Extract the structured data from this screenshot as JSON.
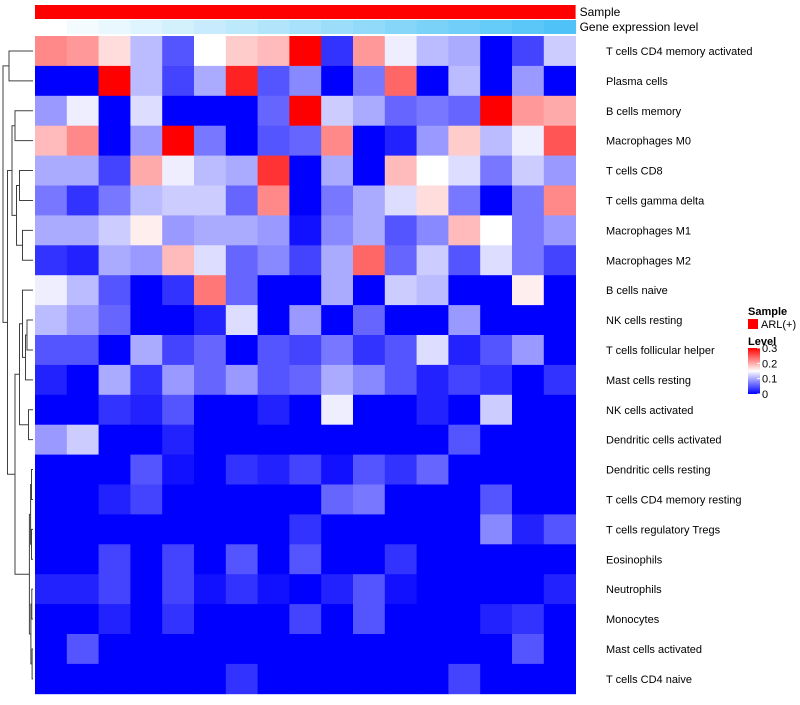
{
  "colors": {
    "low": "#0000ff",
    "mid": "#ffffff",
    "high": "#ff0000",
    "sample_bar": "#ff0000",
    "expr_low": "#ffffff",
    "expr_high": "#4fc3f7",
    "dendro": "#404040"
  },
  "chart_data": {
    "type": "heatmap",
    "title": "",
    "annotations": [
      {
        "label": "Sample",
        "kind": "categorical",
        "value": "ARL(+)"
      },
      {
        "label": "Gene expression level",
        "kind": "gradient",
        "range": [
          0,
          1
        ]
      }
    ],
    "rows": [
      "T cells CD4 memory activated",
      "Plasma cells",
      "B cells memory",
      "Macrophages M0",
      "T cells CD8",
      "T cells gamma delta",
      "Macrophages M1",
      "Macrophages M2",
      "B cells naive",
      "NK cells resting",
      "T cells follicular helper",
      "Mast cells resting",
      "NK cells activated",
      "Dendritic cells activated",
      "Dendritic cells resting",
      "T cells CD4 memory resting",
      "T cells regulatory  Tregs",
      "Eosinophils",
      "Neutrophils",
      "Monocytes",
      "Mast cells activated",
      "T cells CD4 naive"
    ],
    "columns": 17,
    "values": [
      [
        0.22,
        0.21,
        0.17,
        0.11,
        0.05,
        0.15,
        0.18,
        0.19,
        0.3,
        0.03,
        0.21,
        0.14,
        0.11,
        0.1,
        0.0,
        0.04,
        0.12
      ],
      [
        0.0,
        0.0,
        0.3,
        0.11,
        0.04,
        0.1,
        0.28,
        0.05,
        0.08,
        0.0,
        0.07,
        0.24,
        0.0,
        0.11,
        0.0,
        0.09,
        0.0
      ],
      [
        0.09,
        0.14,
        0.0,
        0.13,
        0.0,
        0.0,
        0.0,
        0.06,
        0.3,
        0.12,
        0.1,
        0.06,
        0.07,
        0.06,
        0.3,
        0.21,
        0.2
      ],
      [
        0.19,
        0.22,
        0.0,
        0.09,
        0.3,
        0.07,
        0.0,
        0.05,
        0.06,
        0.22,
        0.0,
        0.02,
        0.09,
        0.18,
        0.11,
        0.14,
        0.25
      ],
      [
        0.1,
        0.1,
        0.04,
        0.2,
        0.14,
        0.11,
        0.1,
        0.27,
        0.0,
        0.1,
        0.0,
        0.19,
        0.15,
        0.13,
        0.07,
        0.12,
        0.09
      ],
      [
        0.07,
        0.03,
        0.07,
        0.11,
        0.12,
        0.12,
        0.06,
        0.22,
        0.0,
        0.07,
        0.1,
        0.13,
        0.17,
        0.07,
        0.0,
        0.07,
        0.22
      ],
      [
        0.1,
        0.1,
        0.12,
        0.16,
        0.09,
        0.1,
        0.1,
        0.09,
        0.01,
        0.08,
        0.1,
        0.05,
        0.08,
        0.19,
        0.15,
        0.07,
        0.09
      ],
      [
        0.03,
        0.02,
        0.1,
        0.09,
        0.19,
        0.13,
        0.06,
        0.08,
        0.04,
        0.1,
        0.24,
        0.06,
        0.12,
        0.05,
        0.13,
        0.07,
        0.04
      ],
      [
        0.14,
        0.11,
        0.05,
        0.0,
        0.03,
        0.23,
        0.06,
        0.0,
        0.0,
        0.1,
        0.0,
        0.12,
        0.11,
        0.0,
        0.0,
        0.16,
        0.0
      ],
      [
        0.11,
        0.09,
        0.06,
        0.0,
        0.0,
        0.02,
        0.13,
        0.0,
        0.09,
        0.0,
        0.06,
        0.0,
        0.0,
        0.09,
        0.0,
        0.0,
        0.0
      ],
      [
        0.05,
        0.05,
        0.0,
        0.1,
        0.04,
        0.06,
        0.0,
        0.05,
        0.04,
        0.07,
        0.03,
        0.05,
        0.13,
        0.02,
        0.05,
        0.09,
        0.0
      ],
      [
        0.02,
        0.0,
        0.1,
        0.03,
        0.09,
        0.06,
        0.09,
        0.05,
        0.06,
        0.1,
        0.08,
        0.05,
        0.02,
        0.04,
        0.03,
        0.0,
        0.03
      ],
      [
        0.0,
        0.0,
        0.03,
        0.02,
        0.05,
        0.0,
        0.0,
        0.02,
        0.0,
        0.14,
        0.0,
        0.0,
        0.02,
        0.0,
        0.12,
        0.0,
        0.0
      ],
      [
        0.09,
        0.12,
        0.0,
        0.0,
        0.02,
        0.0,
        0.0,
        0.0,
        0.0,
        0.0,
        0.0,
        0.0,
        0.0,
        0.05,
        0.0,
        0.0,
        0.0
      ],
      [
        0.0,
        0.0,
        0.0,
        0.05,
        0.01,
        0.0,
        0.03,
        0.02,
        0.04,
        0.01,
        0.05,
        0.03,
        0.06,
        0.0,
        0.0,
        0.0,
        0.0
      ],
      [
        0.0,
        0.0,
        0.02,
        0.04,
        0.0,
        0.0,
        0.0,
        0.0,
        0.0,
        0.06,
        0.07,
        0.0,
        0.0,
        0.0,
        0.05,
        0.0,
        0.0
      ],
      [
        0.0,
        0.0,
        0.0,
        0.0,
        0.0,
        0.0,
        0.0,
        0.0,
        0.03,
        0.0,
        0.0,
        0.0,
        0.0,
        0.0,
        0.08,
        0.02,
        0.05
      ],
      [
        0.0,
        0.0,
        0.04,
        0.0,
        0.04,
        0.0,
        0.05,
        0.0,
        0.05,
        0.0,
        0.0,
        0.03,
        0.0,
        0.0,
        0.0,
        0.0,
        0.0
      ],
      [
        0.02,
        0.02,
        0.04,
        0.0,
        0.04,
        0.01,
        0.03,
        0.01,
        0.0,
        0.02,
        0.05,
        0.01,
        0.0,
        0.0,
        0.0,
        0.0,
        0.02
      ],
      [
        0.0,
        0.0,
        0.02,
        0.0,
        0.03,
        0.0,
        0.0,
        0.0,
        0.04,
        0.0,
        0.05,
        0.0,
        0.0,
        0.0,
        0.02,
        0.03,
        0.0
      ],
      [
        0.0,
        0.05,
        0.0,
        0.0,
        0.0,
        0.0,
        0.0,
        0.0,
        0.0,
        0.0,
        0.0,
        0.0,
        0.0,
        0.0,
        0.0,
        0.05,
        0.0
      ],
      [
        0.0,
        0.0,
        0.0,
        0.0,
        0.0,
        0.0,
        0.03,
        0.0,
        0.0,
        0.0,
        0.0,
        0.0,
        0.0,
        0.04,
        0.0,
        0.0,
        0.0
      ]
    ],
    "color_scale": {
      "min": 0,
      "max": 0.3
    },
    "legend": {
      "sample_title": "Sample",
      "sample_entry": "ARL(+)",
      "level_title": "Level",
      "level_ticks": [
        {
          "value": 0.3,
          "label": "0.3"
        },
        {
          "value": 0.2,
          "label": "0.2"
        },
        {
          "value": 0.1,
          "label": "0.1"
        },
        {
          "value": 0,
          "label": "0"
        }
      ],
      "placement": "right"
    }
  }
}
